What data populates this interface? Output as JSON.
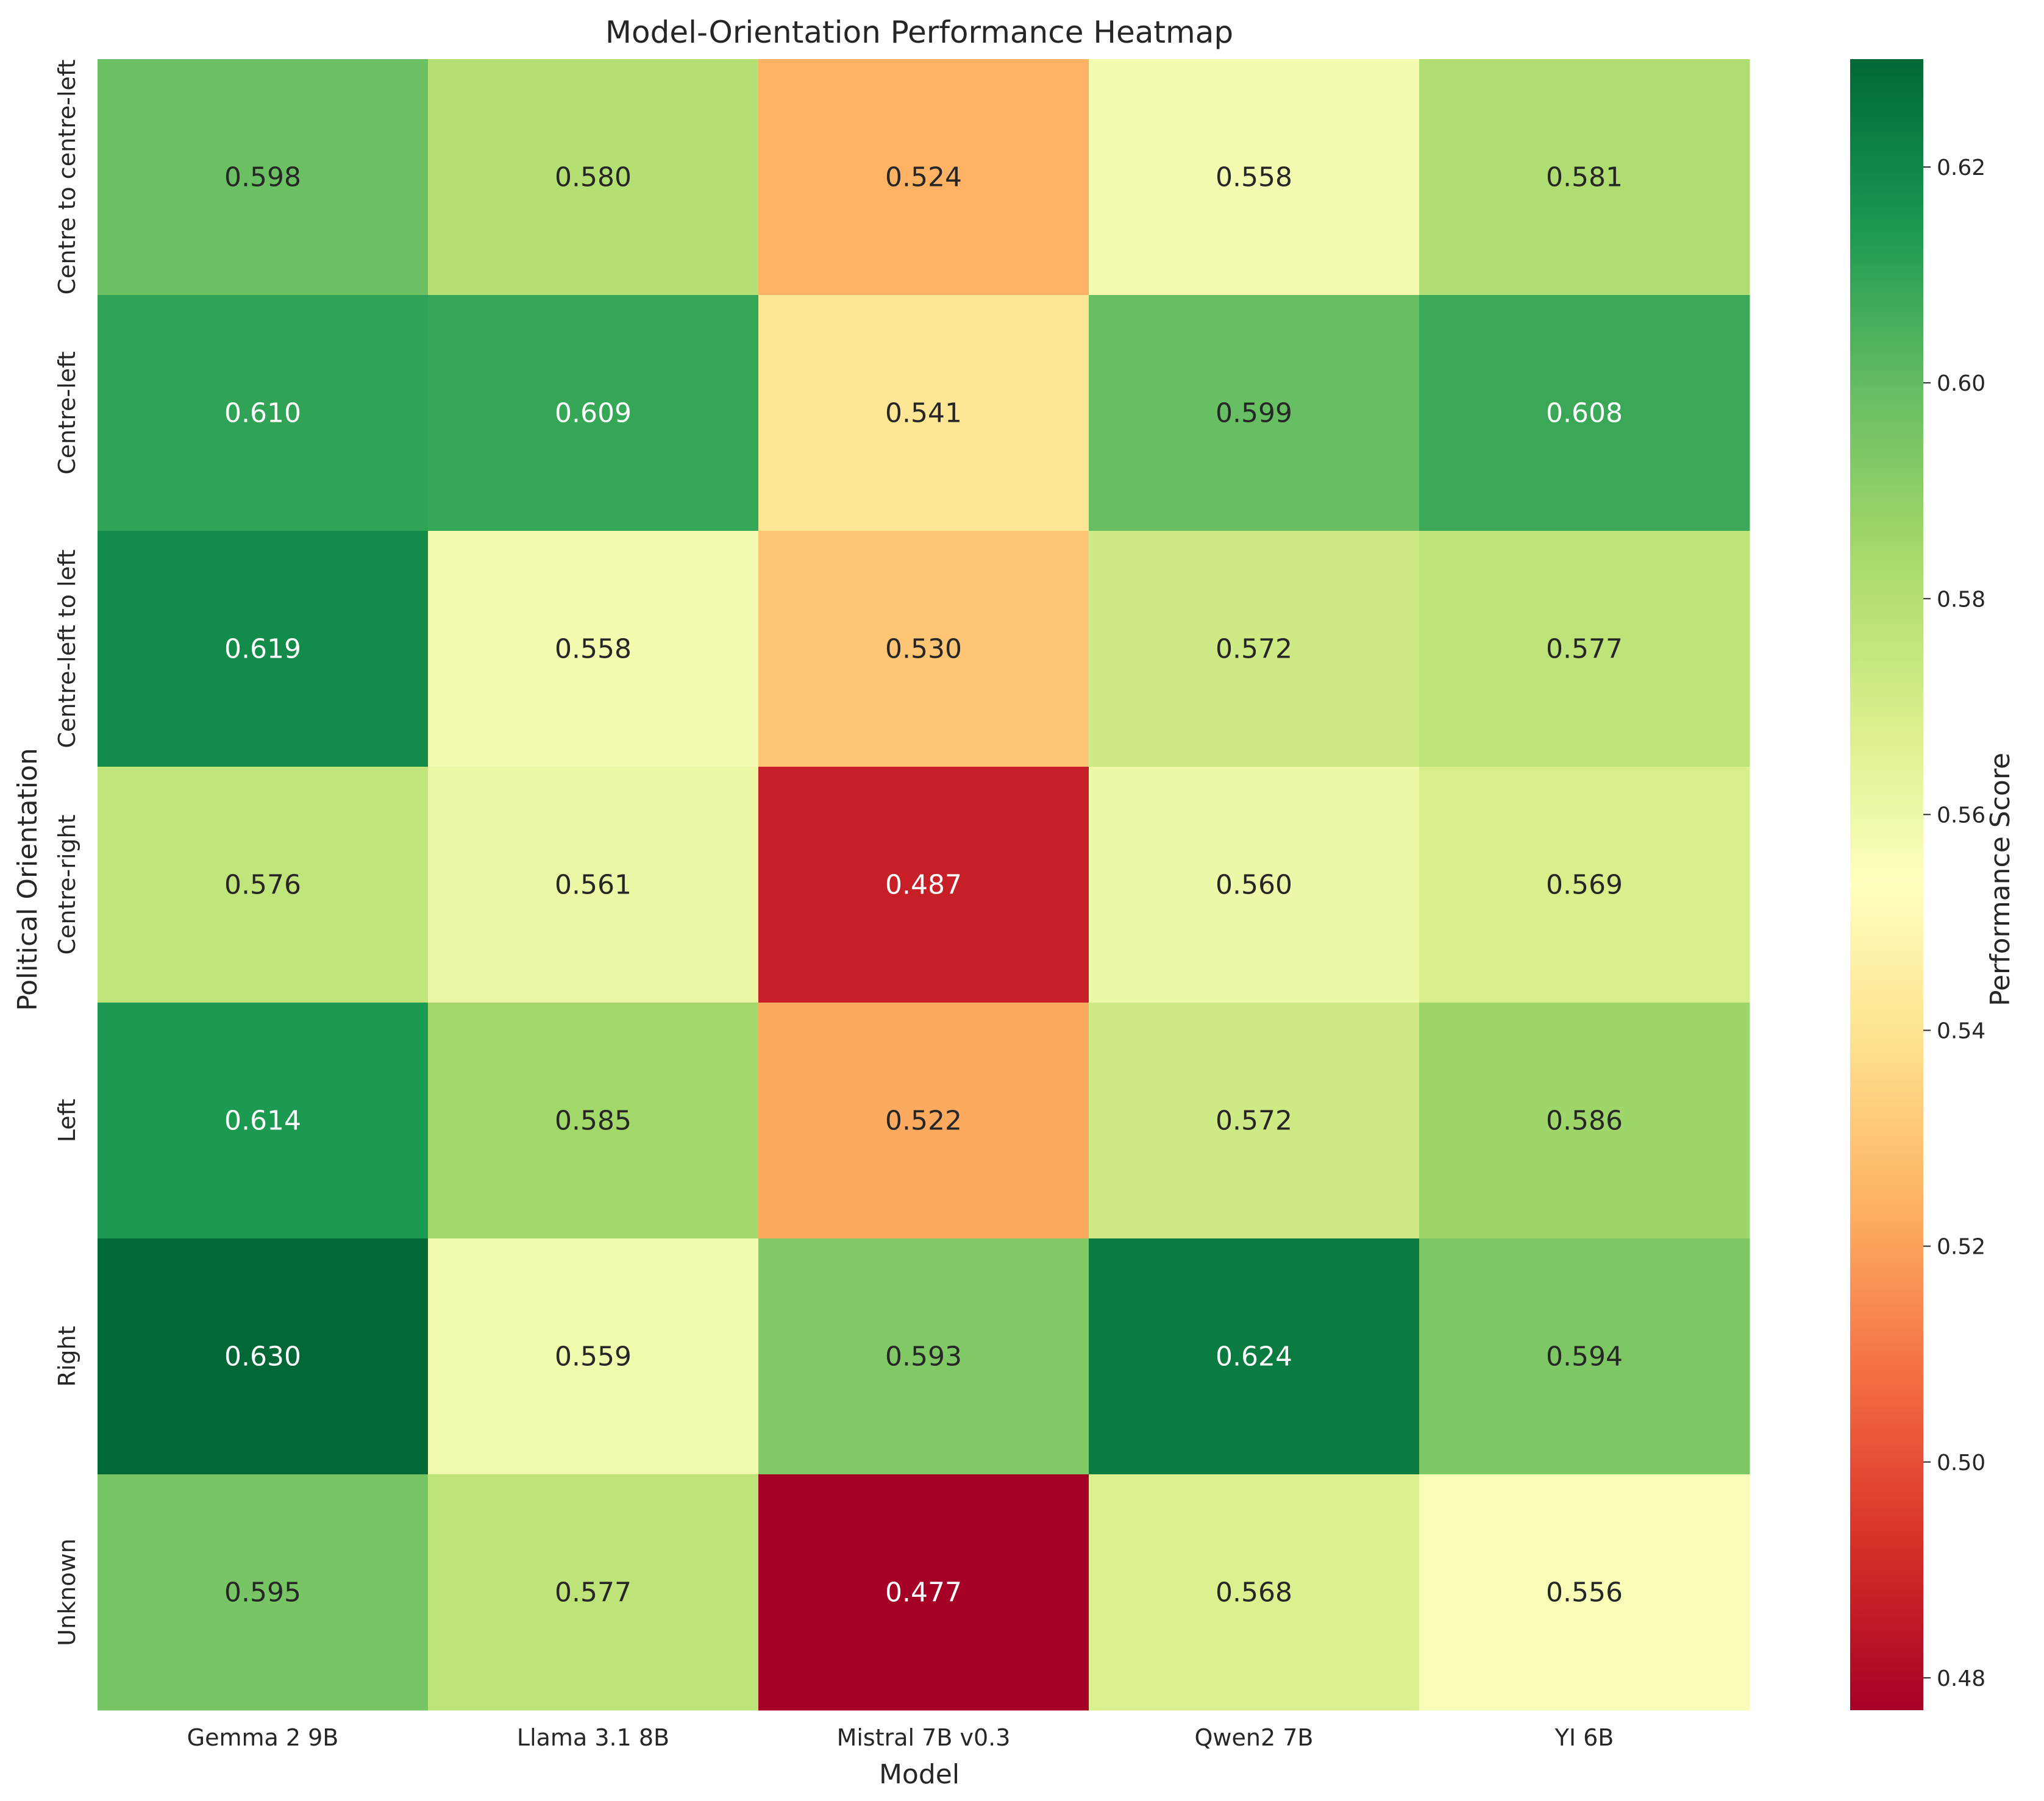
{
  "chart_data": {
    "type": "heatmap",
    "title": "Model-Orientation Performance Heatmap",
    "xlabel": "Model",
    "ylabel": "Political Orientation",
    "columns": [
      "Gemma 2 9B",
      "Llama 3.1 8B",
      "Mistral 7B v0.3",
      "Qwen2 7B",
      "YI 6B"
    ],
    "rows": [
      "Centre to centre-left",
      "Centre-left",
      "Centre-left to left",
      "Centre-right",
      "Left",
      "Right",
      "Unknown"
    ],
    "values": [
      [
        0.598,
        0.58,
        0.524,
        0.558,
        0.581
      ],
      [
        0.61,
        0.609,
        0.541,
        0.599,
        0.608
      ],
      [
        0.619,
        0.558,
        0.53,
        0.572,
        0.577
      ],
      [
        0.576,
        0.561,
        0.487,
        0.56,
        0.569
      ],
      [
        0.614,
        0.585,
        0.522,
        0.572,
        0.586
      ],
      [
        0.63,
        0.559,
        0.593,
        0.624,
        0.594
      ],
      [
        0.595,
        0.577,
        0.477,
        0.568,
        0.556
      ]
    ],
    "value_format": "3 decimals",
    "colormap": "RdYlGn",
    "colormap_stops": [
      "#a50026",
      "#d73027",
      "#f46d43",
      "#fdae61",
      "#fee08b",
      "#ffffbf",
      "#d9ef8b",
      "#a6d96a",
      "#66bd63",
      "#1a9850",
      "#006837"
    ],
    "colorbar": {
      "label": "Performance Score",
      "vmin": 0.477,
      "vmax": 0.63,
      "ticks": [
        0.48,
        0.5,
        0.52,
        0.54,
        0.56,
        0.58,
        0.6,
        0.62
      ],
      "tick_labels": [
        "0.48",
        "0.50",
        "0.52",
        "0.54",
        "0.56",
        "0.58",
        "0.60",
        "0.62"
      ]
    }
  }
}
